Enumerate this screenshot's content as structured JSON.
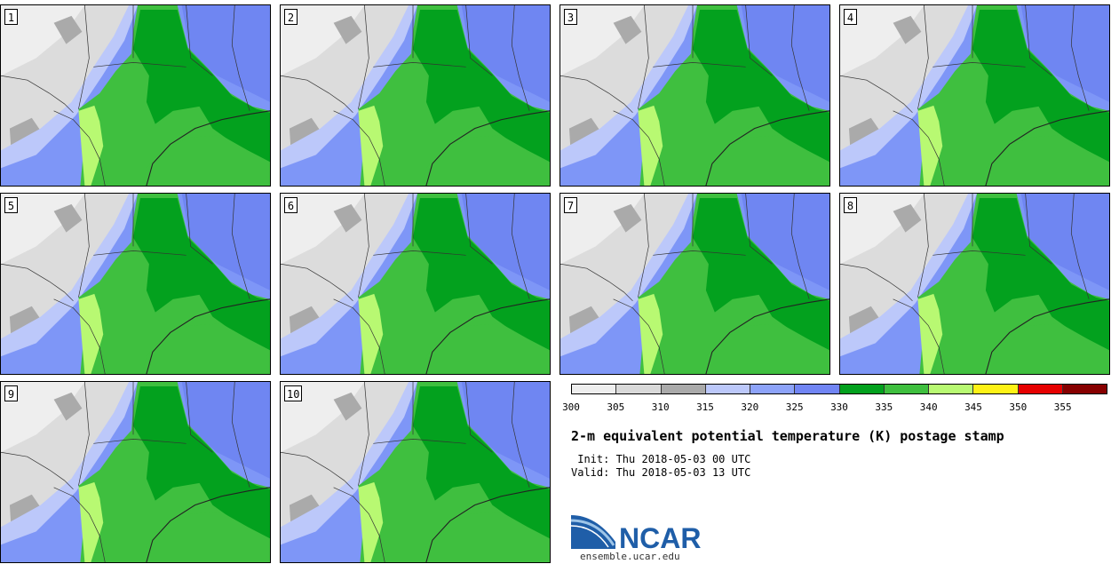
{
  "panels": [
    {
      "label": "1"
    },
    {
      "label": "2"
    },
    {
      "label": "3"
    },
    {
      "label": "4"
    },
    {
      "label": "5"
    },
    {
      "label": "6"
    },
    {
      "label": "7"
    },
    {
      "label": "8"
    },
    {
      "label": "9"
    },
    {
      "label": "10"
    }
  ],
  "colorbar": {
    "ticks": [
      "300",
      "305",
      "310",
      "315",
      "320",
      "325",
      "330",
      "335",
      "340",
      "345",
      "350",
      "355"
    ],
    "colors": [
      "#eeeeee",
      "#d9d9d9",
      "#aaaaaa",
      "#bcc8fa",
      "#8da3f9",
      "#7185f4",
      "#03a11e",
      "#3fbf3f",
      "#b8f972",
      "#fef216",
      "#e60000",
      "#870000"
    ]
  },
  "title": "2-m equivalent potential temperature (K) postage stamp",
  "init": " Init: Thu 2018-05-03 00 UTC",
  "valid": "Valid: Thu 2018-05-03 13 UTC",
  "logo": {
    "text": "NCAR",
    "url": "ensemble.ucar.edu",
    "colors": {
      "primary": "#1f5ea8",
      "light": "#9ec5e8"
    }
  }
}
